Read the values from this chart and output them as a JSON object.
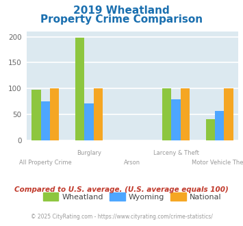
{
  "title_line1": "2019 Wheatland",
  "title_line2": "Property Crime Comparison",
  "title_color": "#1a6faf",
  "categories": [
    "All Property Crime",
    "Burglary",
    "Arson",
    "Larceny & Theft",
    "Motor Vehicle Theft"
  ],
  "wheatland": [
    97,
    198,
    null,
    100,
    40
  ],
  "wyoming": [
    75,
    71,
    null,
    79,
    56
  ],
  "national": [
    100,
    100,
    null,
    100,
    100
  ],
  "bar_colors": {
    "wheatland": "#8dc63f",
    "wyoming": "#4da6ff",
    "national": "#f5a623"
  },
  "ylim": [
    0,
    210
  ],
  "yticks": [
    0,
    50,
    100,
    150,
    200
  ],
  "plot_bg": "#dce9f0",
  "grid_color": "#ffffff",
  "footer_text": "Compared to U.S. average. (U.S. average equals 100)",
  "footer_color": "#c0392b",
  "copyright_text": "© 2025 CityRating.com - https://www.cityrating.com/crime-statistics/",
  "copyright_color": "#999999",
  "legend_labels": [
    "Wheatland",
    "Wyoming",
    "National"
  ],
  "row1_labels": {
    "1": "Burglary",
    "3": "Larceny & Theft"
  },
  "row2_labels": {
    "0": "All Property Crime",
    "2": "Arson",
    "4": "Motor Vehicle Theft"
  },
  "x_positions": [
    0.0,
    1.05,
    2.1,
    3.15,
    4.2
  ],
  "bar_width": 0.22,
  "xlim": [
    -0.45,
    4.65
  ]
}
